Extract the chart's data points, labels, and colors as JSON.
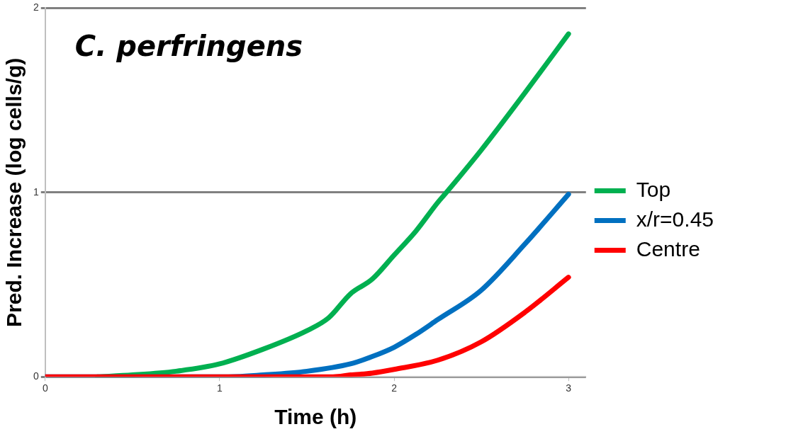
{
  "chart_data": {
    "type": "line",
    "title": "C. perfringens",
    "xlabel": "Time (h)",
    "ylabel": "Pred. Increase (log cells/g)",
    "xlim": [
      0,
      3.1
    ],
    "xticks": [
      0,
      1,
      2,
      3
    ],
    "ylim": [
      0,
      2
    ],
    "yticks": [
      0,
      1,
      2
    ],
    "grid": "y",
    "legend": "right",
    "marker": "none",
    "line_style": "solid",
    "series": [
      {
        "name": "Top",
        "color": "#00b050",
        "x": [
          0.3,
          0.5,
          0.75,
          1,
          1.25,
          1.5,
          1.625,
          1.75,
          1.875,
          2,
          2.125,
          2.25,
          2.3,
          2.5,
          2.75,
          3
        ],
        "values": [
          0,
          0.01,
          0.03,
          0.07,
          0.15,
          0.25,
          0.32,
          0.45,
          0.53,
          0.66,
          0.79,
          0.945,
          1,
          1.23,
          1.54,
          1.86
        ]
      },
      {
        "name": "x/r=0.45",
        "color": "#0070c0",
        "x": [
          0,
          1.05,
          1.25,
          1.5,
          1.75,
          1.875,
          2,
          2.125,
          2.25,
          2.5,
          2.75,
          3
        ],
        "values": [
          0,
          0,
          0.01,
          0.03,
          0.07,
          0.11,
          0.16,
          0.23,
          0.31,
          0.47,
          0.72,
          0.99
        ]
      },
      {
        "name": "Centre",
        "color": "#ff0000",
        "x": [
          0,
          1.65,
          1.75,
          1.875,
          2,
          2.25,
          2.5,
          2.75,
          3
        ],
        "values": [
          0,
          0,
          0.01,
          0.02,
          0.04,
          0.09,
          0.19,
          0.35,
          0.54
        ]
      }
    ]
  }
}
